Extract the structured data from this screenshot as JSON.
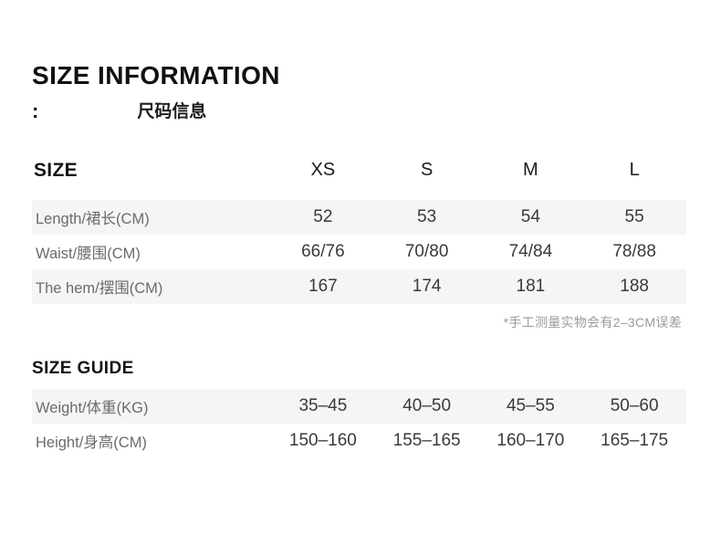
{
  "page": {
    "title": "SIZE INFORMATION",
    "subtitle_colon": ":",
    "subtitle_cn": "尺码信息"
  },
  "colors": {
    "background": "#ffffff",
    "row_stripe": "#f5f5f6",
    "title_text": "#111111",
    "label_text": "#6b6b6b",
    "value_text": "#3a3a3a",
    "note_text": "#9b9b9b"
  },
  "size_table": {
    "header": [
      "SIZE",
      "XS",
      "S",
      "M",
      "L"
    ],
    "rows": [
      {
        "label": "Length/裙长(CM)",
        "values": [
          "52",
          "53",
          "54",
          "55"
        ]
      },
      {
        "label": "Waist/腰围(CM)",
        "values": [
          "66/76",
          "70/80",
          "74/84",
          "78/88"
        ]
      },
      {
        "label": "The hem/摆围(CM)",
        "values": [
          "167",
          "174",
          "181",
          "188"
        ]
      }
    ]
  },
  "note": "*手工测量实物会有2–3CM误差",
  "size_guide": {
    "title": "SIZE GUIDE",
    "rows": [
      {
        "label": "Weight/体重(KG)",
        "values": [
          "35–45",
          "40–50",
          "45–55",
          "50–60"
        ]
      },
      {
        "label": "Height/身高(CM)",
        "values": [
          "150–160",
          "155–165",
          "160–170",
          "165–175"
        ]
      }
    ]
  }
}
